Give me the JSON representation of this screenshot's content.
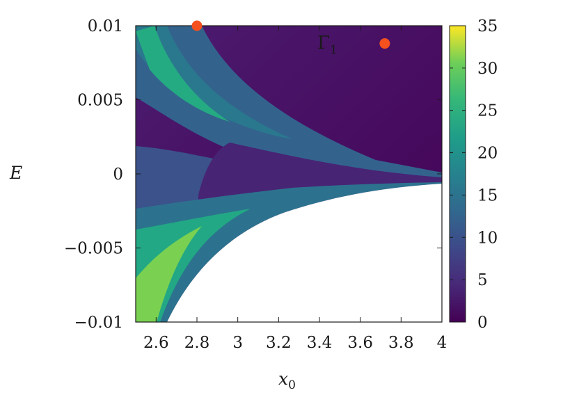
{
  "chart_data": {
    "type": "heatmap",
    "title": "",
    "xlabel": "x",
    "xlabel_subscript": "0",
    "ylabel": "E",
    "xlim": [
      2.5,
      4.0
    ],
    "ylim": [
      -0.01,
      0.01
    ],
    "x_ticks": [
      {
        "value": 2.6,
        "label": "2.6"
      },
      {
        "value": 2.8,
        "label": "2.8"
      },
      {
        "value": 3.0,
        "label": "3"
      },
      {
        "value": 3.2,
        "label": "3.2"
      },
      {
        "value": 3.4,
        "label": "3.4"
      },
      {
        "value": 3.6,
        "label": "3.6"
      },
      {
        "value": 3.8,
        "label": "3.8"
      },
      {
        "value": 4.0,
        "label": "4"
      }
    ],
    "y_ticks": [
      {
        "value": 0.01,
        "label": "0.01"
      },
      {
        "value": 0.005,
        "label": "0.005"
      },
      {
        "value": 0,
        "label": "0"
      },
      {
        "value": -0.005,
        "label": "−0.005"
      },
      {
        "value": -0.01,
        "label": "−0.01"
      }
    ],
    "colorbar": {
      "range": [
        0,
        35
      ],
      "ticks": [
        {
          "value": 0,
          "label": "0"
        },
        {
          "value": 5,
          "label": "5"
        },
        {
          "value": 10,
          "label": "10"
        },
        {
          "value": 15,
          "label": "15"
        },
        {
          "value": 20,
          "label": "20"
        },
        {
          "value": 25,
          "label": "25"
        },
        {
          "value": 30,
          "label": "30"
        },
        {
          "value": 35,
          "label": "35"
        }
      ],
      "colormap": "viridis"
    },
    "points": [
      {
        "x": 2.8,
        "y": 0.01,
        "color": "#f4511e"
      },
      {
        "x": 3.72,
        "y": 0.0088,
        "color": "#f4511e"
      }
    ],
    "annotation": {
      "text": "Γ",
      "subscript": "1",
      "x": 3.38,
      "y": 0.0085
    },
    "grid": false
  }
}
